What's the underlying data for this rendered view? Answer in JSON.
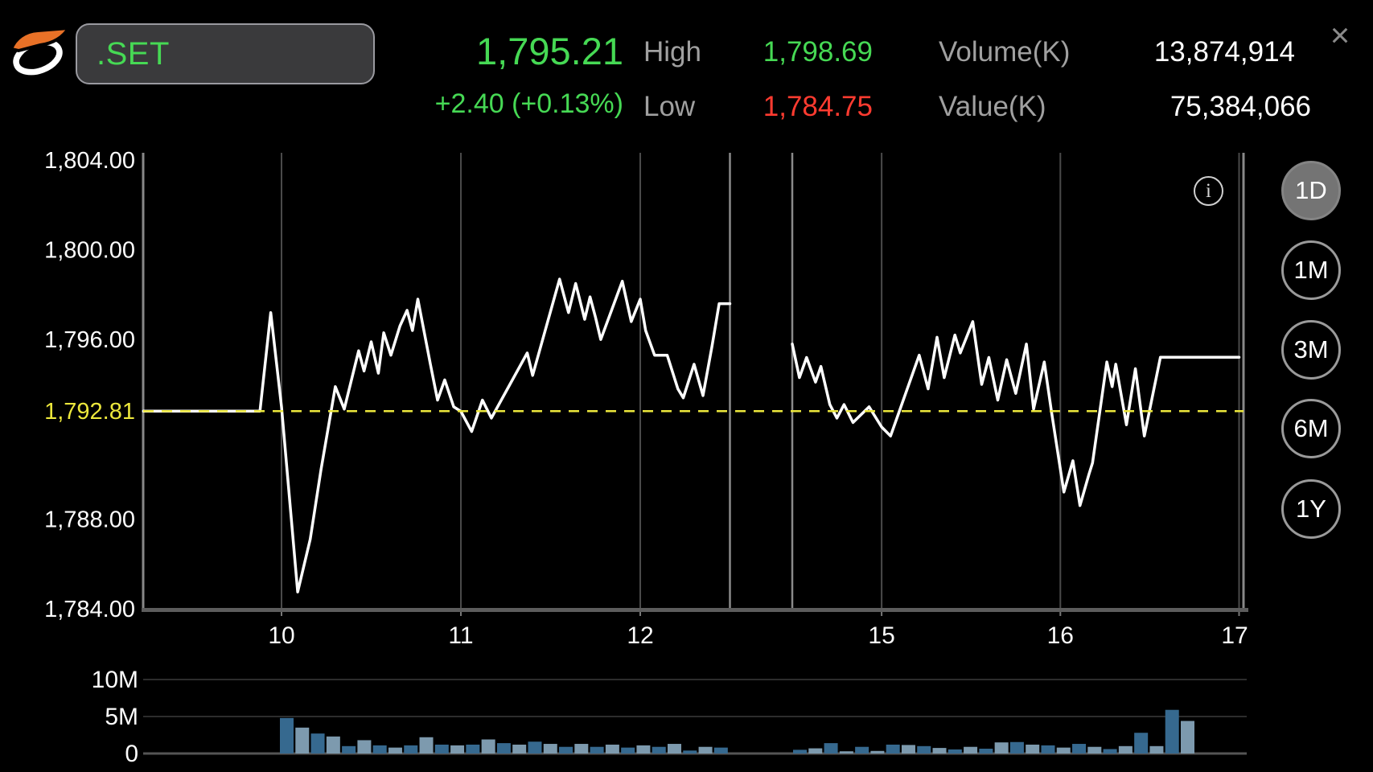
{
  "window": {
    "close_icon": "×"
  },
  "header": {
    "symbol": ".SET",
    "last_price": "1,795.21",
    "change": "+2.40 (+0.13%)",
    "high_label": "High",
    "high_value": "1,798.69",
    "low_label": "Low",
    "low_value": "1,784.75",
    "volume_label": "Volume(K)",
    "volume_value": "13,874,914",
    "value_label": "Value(K)",
    "value_value": "75,384,066"
  },
  "info_icon_letter": "i",
  "timeframes": [
    {
      "label": "1D",
      "selected": true
    },
    {
      "label": "1M",
      "selected": false
    },
    {
      "label": "3M",
      "selected": false
    },
    {
      "label": "6M",
      "selected": false
    },
    {
      "label": "1Y",
      "selected": false
    }
  ],
  "colors": {
    "up_green": "#46d954",
    "down_red": "#ff3b30",
    "prev_close_yellow": "#ece73c",
    "label_gray": "#a0a0a0",
    "grid_gray": "#4a4a4a",
    "session_line_gray": "#8a8a8a",
    "axis_gray": "#888888",
    "volume_bar_dark": "#36698f",
    "volume_bar_light": "#7d9aae",
    "line_white": "#ffffff"
  },
  "chart_data": [
    {
      "type": "line",
      "title": ".SET intraday (1D)",
      "x_unit": "hour_of_day",
      "sessions": {
        "morning": [
          10.0,
          12.5
        ],
        "afternoon": [
          14.5,
          17.0
        ]
      },
      "x_ticks": [
        10,
        11,
        12,
        15,
        16,
        17
      ],
      "x_tick_labels": [
        "10",
        "11",
        "12",
        "15",
        "16",
        "17"
      ],
      "session_break_hours": [
        12.5,
        14.5
      ],
      "ylim": [
        1784,
        1804
      ],
      "y_ticks": [
        {
          "label": "1,804.00",
          "value": 1804
        },
        {
          "label": "1,800.00",
          "value": 1800
        },
        {
          "label": "1,796.00",
          "value": 1796
        },
        {
          "label": "1,788.00",
          "value": 1788
        },
        {
          "label": "1,784.00",
          "value": 1784
        }
      ],
      "prev_close": {
        "label": "1,792.81",
        "value": 1792.81
      },
      "points": [
        [
          9.23,
          1792.81
        ],
        [
          9.88,
          1792.81
        ],
        [
          9.94,
          1797.2
        ],
        [
          10.0,
          1793.0
        ],
        [
          10.09,
          1784.75
        ],
        [
          10.16,
          1787.1
        ],
        [
          10.22,
          1790.2
        ],
        [
          10.3,
          1793.9
        ],
        [
          10.35,
          1792.9
        ],
        [
          10.43,
          1795.5
        ],
        [
          10.46,
          1794.6
        ],
        [
          10.5,
          1795.9
        ],
        [
          10.54,
          1794.5
        ],
        [
          10.57,
          1796.3
        ],
        [
          10.61,
          1795.3
        ],
        [
          10.66,
          1796.6
        ],
        [
          10.7,
          1797.3
        ],
        [
          10.73,
          1796.4
        ],
        [
          10.76,
          1797.8
        ],
        [
          10.83,
          1794.9
        ],
        [
          10.87,
          1793.3
        ],
        [
          10.91,
          1794.2
        ],
        [
          10.96,
          1793.0
        ],
        [
          11.0,
          1792.8
        ],
        [
          11.06,
          1791.9
        ],
        [
          11.12,
          1793.3
        ],
        [
          11.17,
          1792.5
        ],
        [
          11.37,
          1795.4
        ],
        [
          11.4,
          1794.4
        ],
        [
          11.55,
          1798.69
        ],
        [
          11.6,
          1797.2
        ],
        [
          11.64,
          1798.5
        ],
        [
          11.69,
          1796.9
        ],
        [
          11.72,
          1797.9
        ],
        [
          11.75,
          1797.0
        ],
        [
          11.78,
          1796.0
        ],
        [
          11.9,
          1798.6
        ],
        [
          11.95,
          1796.8
        ],
        [
          12.0,
          1797.8
        ],
        [
          12.03,
          1796.4
        ],
        [
          12.08,
          1795.3
        ],
        [
          12.15,
          1795.3
        ],
        [
          12.21,
          1793.8
        ],
        [
          12.24,
          1793.4
        ],
        [
          12.3,
          1794.9
        ],
        [
          12.35,
          1793.5
        ],
        [
          12.4,
          1795.7
        ],
        [
          12.44,
          1797.6
        ],
        [
          12.5,
          1797.6
        ],
        [
          14.5,
          1795.8
        ],
        [
          14.54,
          1794.3
        ],
        [
          14.58,
          1795.2
        ],
        [
          14.63,
          1794.1
        ],
        [
          14.66,
          1794.8
        ],
        [
          14.71,
          1793.1
        ],
        [
          14.75,
          1792.5
        ],
        [
          14.79,
          1793.1
        ],
        [
          14.84,
          1792.3
        ],
        [
          14.93,
          1793.0
        ],
        [
          15.0,
          1792.1
        ],
        [
          15.05,
          1791.7
        ],
        [
          15.21,
          1795.3
        ],
        [
          15.26,
          1793.8
        ],
        [
          15.31,
          1796.1
        ],
        [
          15.35,
          1794.3
        ],
        [
          15.41,
          1796.2
        ],
        [
          15.44,
          1795.4
        ],
        [
          15.51,
          1796.8
        ],
        [
          15.56,
          1794.0
        ],
        [
          15.6,
          1795.2
        ],
        [
          15.65,
          1793.3
        ],
        [
          15.7,
          1795.1
        ],
        [
          15.75,
          1793.6
        ],
        [
          15.81,
          1795.8
        ],
        [
          15.85,
          1792.9
        ],
        [
          15.91,
          1795.0
        ],
        [
          15.95,
          1792.8
        ],
        [
          16.02,
          1789.2
        ],
        [
          16.07,
          1790.6
        ],
        [
          16.11,
          1788.6
        ],
        [
          16.16,
          1790.0
        ],
        [
          16.18,
          1790.5
        ],
        [
          16.26,
          1795.0
        ],
        [
          16.29,
          1793.9
        ],
        [
          16.31,
          1794.9
        ],
        [
          16.37,
          1792.2
        ],
        [
          16.42,
          1794.7
        ],
        [
          16.47,
          1791.7
        ],
        [
          16.56,
          1795.21
        ],
        [
          17.0,
          1795.21
        ]
      ]
    },
    {
      "type": "bar",
      "name": "volume",
      "bar_minutes": 5,
      "ylim": [
        0,
        12
      ],
      "y_ticks": [
        {
          "label": "10M",
          "value": 10
        },
        {
          "label": "5M",
          "value": 5
        },
        {
          "label": "0",
          "value": 0
        }
      ],
      "morning_start_hour": 10.0,
      "afternoon_start_hour": 14.5,
      "morning_values_M": [
        4.8,
        3.5,
        2.7,
        2.3,
        1.0,
        1.8,
        1.1,
        0.8,
        1.1,
        2.2,
        1.2,
        1.1,
        1.2,
        1.9,
        1.4,
        1.2,
        1.6,
        1.3,
        0.9,
        1.3,
        0.9,
        1.2,
        0.8,
        1.1,
        0.9,
        1.3,
        0.4,
        0.9,
        0.8
      ],
      "afternoon_values_M": [
        0.5,
        0.7,
        1.4,
        0.3,
        0.9,
        0.35,
        1.2,
        1.15,
        1.0,
        0.75,
        0.55,
        0.9,
        0.65,
        1.5,
        1.55,
        1.2,
        1.1,
        0.8,
        1.3,
        0.9,
        0.6,
        1.0,
        2.8,
        1.0,
        5.9,
        4.4
      ]
    }
  ]
}
